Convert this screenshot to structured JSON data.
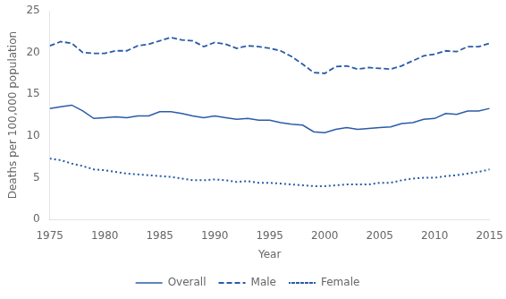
{
  "chart_data": {
    "type": "line",
    "xlabel": "Year",
    "ylabel": "Deaths per 100,000 population",
    "x": [
      1975,
      1976,
      1977,
      1978,
      1979,
      1980,
      1981,
      1982,
      1983,
      1984,
      1985,
      1986,
      1987,
      1988,
      1989,
      1990,
      1991,
      1992,
      1993,
      1994,
      1995,
      1996,
      1997,
      1998,
      1999,
      2000,
      2001,
      2002,
      2003,
      2004,
      2005,
      2006,
      2007,
      2008,
      2009,
      2010,
      2011,
      2012,
      2013,
      2014,
      2015
    ],
    "series": [
      {
        "name": "Overall",
        "color": "#2b5ba8",
        "line_style": "solid",
        "values": [
          13.3,
          13.5,
          13.7,
          13.0,
          12.1,
          12.2,
          12.3,
          12.2,
          12.4,
          12.4,
          12.9,
          12.9,
          12.7,
          12.4,
          12.2,
          12.4,
          12.2,
          12.0,
          12.1,
          11.9,
          11.9,
          11.6,
          11.4,
          11.3,
          10.5,
          10.4,
          10.8,
          11.0,
          10.8,
          10.9,
          11.0,
          11.1,
          11.5,
          11.6,
          12.0,
          12.1,
          12.7,
          12.6,
          13.0,
          13.0,
          13.3
        ]
      },
      {
        "name": "Male",
        "color": "#2b5ba8",
        "line_style": "dashed",
        "values": [
          20.8,
          21.3,
          21.1,
          20.0,
          19.9,
          19.9,
          20.2,
          20.2,
          20.8,
          21.0,
          21.4,
          21.8,
          21.5,
          21.4,
          20.7,
          21.2,
          21.0,
          20.5,
          20.8,
          20.7,
          20.5,
          20.2,
          19.5,
          18.6,
          17.6,
          17.5,
          18.3,
          18.4,
          18.0,
          18.2,
          18.1,
          18.0,
          18.4,
          19.0,
          19.6,
          19.8,
          20.2,
          20.1,
          20.7,
          20.7,
          21.1
        ]
      },
      {
        "name": "Female",
        "color": "#2b5ba8",
        "line_style": "dotted",
        "values": [
          7.3,
          7.1,
          6.7,
          6.4,
          6.0,
          5.9,
          5.7,
          5.5,
          5.4,
          5.3,
          5.2,
          5.1,
          4.9,
          4.7,
          4.7,
          4.8,
          4.7,
          4.5,
          4.6,
          4.4,
          4.4,
          4.3,
          4.2,
          4.1,
          4.0,
          4.0,
          4.1,
          4.2,
          4.2,
          4.2,
          4.4,
          4.4,
          4.7,
          4.9,
          5.0,
          5.0,
          5.2,
          5.3,
          5.5,
          5.7,
          6.0
        ]
      }
    ],
    "xlim": [
      1975,
      2015
    ],
    "xticks": [
      1975,
      1980,
      1985,
      1990,
      1995,
      2000,
      2005,
      2010,
      2015
    ],
    "ylim": [
      0,
      25
    ],
    "yticks": [
      0,
      5,
      10,
      15,
      20,
      25
    ],
    "grid": false,
    "legend": "bottom"
  }
}
